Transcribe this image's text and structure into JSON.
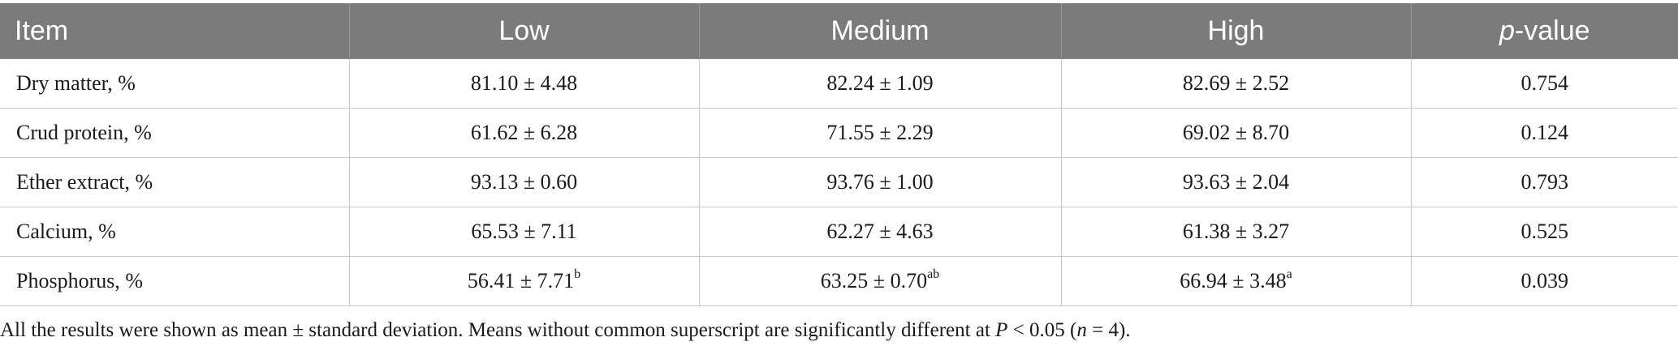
{
  "table": {
    "headers": {
      "item": "Item",
      "low": "Low",
      "medium": "Medium",
      "high": "High",
      "pvalue_italic": "p",
      "pvalue_rest": "-value"
    },
    "rows": [
      {
        "item": "Dry matter, %",
        "low": "81.10 ± 4.48",
        "low_sup": "",
        "medium": "82.24 ± 1.09",
        "medium_sup": "",
        "high": "82.69 ± 2.52",
        "high_sup": "",
        "pvalue": "0.754"
      },
      {
        "item": "Crud protein, %",
        "low": "61.62 ± 6.28",
        "low_sup": "",
        "medium": "71.55 ± 2.29",
        "medium_sup": "",
        "high": "69.02 ± 8.70",
        "high_sup": "",
        "pvalue": "0.124"
      },
      {
        "item": "Ether extract, %",
        "low": "93.13 ± 0.60",
        "low_sup": "",
        "medium": "93.76 ± 1.00",
        "medium_sup": "",
        "high": "93.63 ± 2.04",
        "high_sup": "",
        "pvalue": "0.793"
      },
      {
        "item": "Calcium, %",
        "low": "65.53 ± 7.11",
        "low_sup": "",
        "medium": "62.27 ± 4.63",
        "medium_sup": "",
        "high": "61.38 ± 3.27",
        "high_sup": "",
        "pvalue": "0.525"
      },
      {
        "item": "Phosphorus, %",
        "low": "56.41 ± 7.71",
        "low_sup": "b",
        "medium": "63.25 ± 0.70",
        "medium_sup": "ab",
        "high": "66.94 ± 3.48",
        "high_sup": "a",
        "pvalue": "0.039"
      }
    ]
  },
  "footnote": {
    "part1": "All the results were shown as mean ± standard deviation. Means without common superscript are significantly different at ",
    "p_italic": "P",
    "part2": " < 0.05 (",
    "n_italic": "n",
    "part3": " = 4)."
  }
}
